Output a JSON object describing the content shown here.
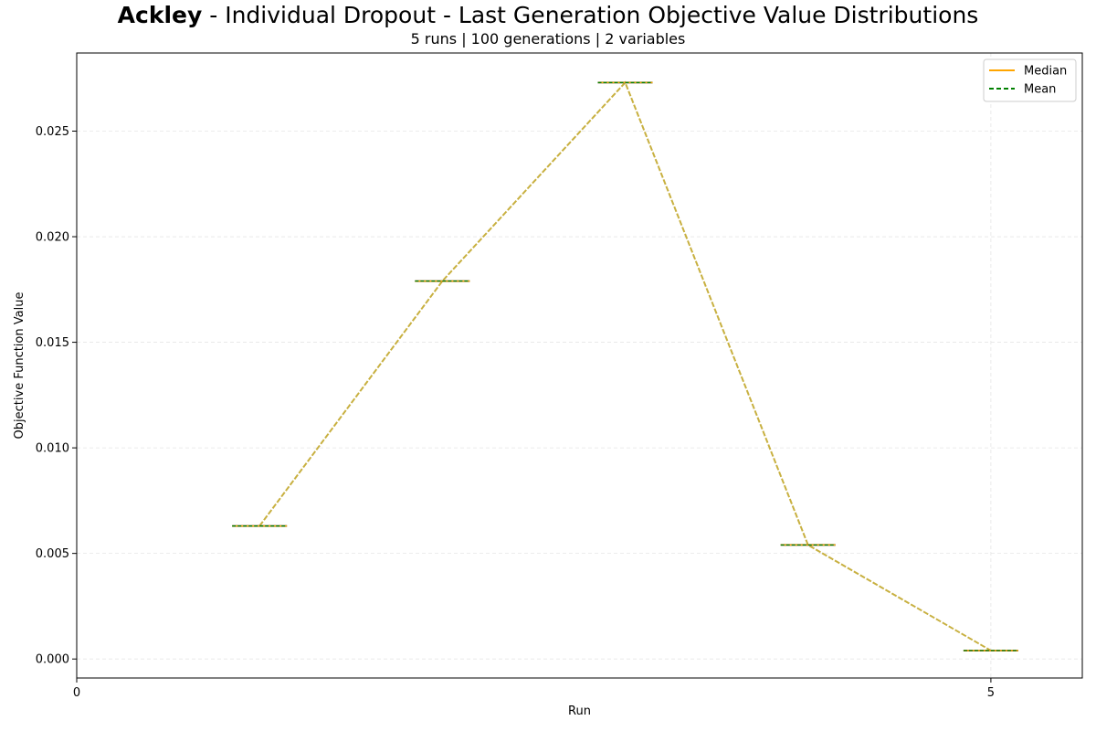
{
  "header": {
    "title_bold": "Ackley",
    "title_rest": " - Individual Dropout - Last Generation Objective Value Distributions",
    "subtitle": "5 runs | 100 generations | 2 variables"
  },
  "chart_data": {
    "type": "box",
    "xlabel": "Run",
    "ylabel": "Objective Function Value",
    "xlim": [
      0,
      5.5
    ],
    "ylim": [
      -0.0009,
      0.0287
    ],
    "x_ticks": [
      0,
      5
    ],
    "y_ticks": [
      0.0,
      0.005,
      0.01,
      0.015,
      0.02,
      0.025
    ],
    "y_tick_labels": [
      "0.000",
      "0.005",
      "0.010",
      "0.015",
      "0.020",
      "0.025"
    ],
    "positions": [
      1,
      2,
      3,
      4,
      5
    ],
    "values": [
      0.0063,
      0.0179,
      0.0273,
      0.0054,
      0.0004
    ],
    "grid": true,
    "legend": {
      "position": "top-right",
      "entries": [
        {
          "label": "Median",
          "color": "#ffa500",
          "style": "solid"
        },
        {
          "label": "Mean",
          "color": "#008000",
          "style": "dashed"
        }
      ]
    },
    "trend_line_color": "#c8b040"
  }
}
